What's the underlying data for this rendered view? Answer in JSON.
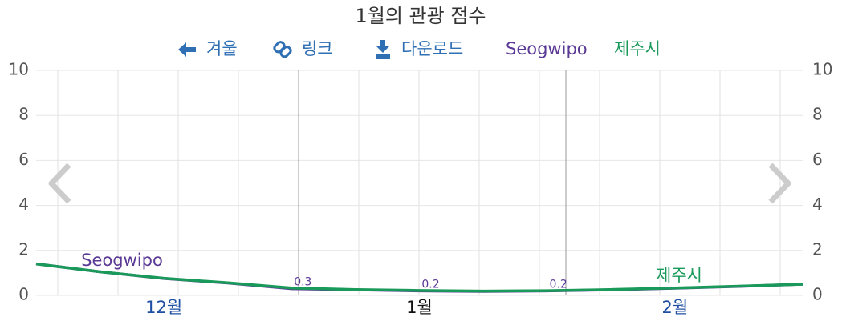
{
  "chart_data": {
    "type": "line",
    "title": "1월의 관광 점수",
    "toolbar": [
      "겨울",
      "링크",
      "다운로드"
    ],
    "categories": [
      null,
      null,
      "12월",
      null,
      null,
      null,
      "1월",
      null,
      null,
      null,
      "2월",
      null,
      null
    ],
    "series": [
      {
        "name": "Seogwipo",
        "color": "#5b3a96",
        "values": [
          1.4,
          1.05,
          0.75,
          0.55,
          0.3,
          0.25,
          0.2,
          0.18,
          0.2,
          0.25,
          0.32,
          0.4,
          0.5
        ],
        "value_labels": [
          null,
          null,
          null,
          null,
          "0.3",
          null,
          "0.2",
          null,
          "0.2",
          null,
          null,
          null,
          null
        ]
      },
      {
        "name": "제주시",
        "color": "#1a9a5a",
        "values": [
          1.4,
          1.05,
          0.76,
          0.56,
          0.33,
          0.26,
          0.22,
          0.19,
          0.21,
          0.26,
          0.33,
          0.41,
          0.5
        ]
      }
    ],
    "ylim": [
      0,
      10
    ],
    "yticks": [
      0,
      2,
      4,
      6,
      8,
      10
    ],
    "grid": true
  }
}
